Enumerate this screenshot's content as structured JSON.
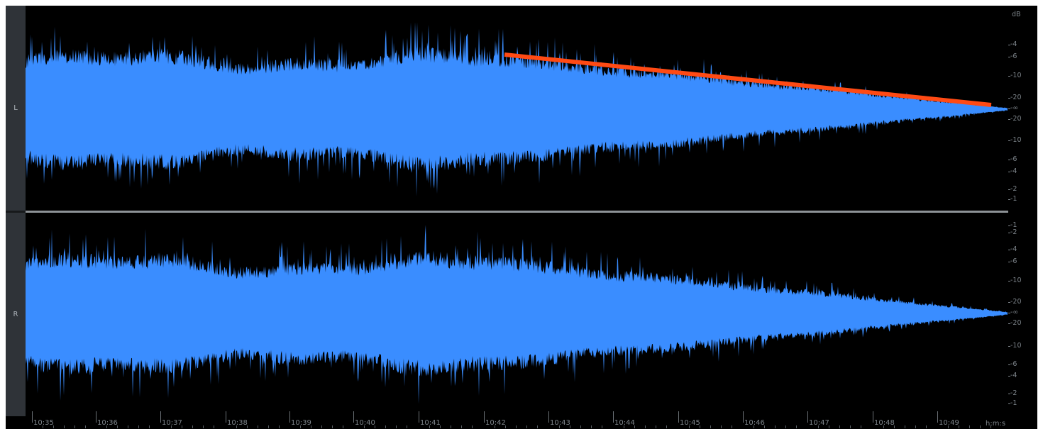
{
  "channels": [
    {
      "label": "L"
    },
    {
      "label": "R"
    }
  ],
  "db_scale": {
    "unit": "dB",
    "left_labels": [
      "-4",
      "-6",
      "-10",
      "-20",
      "-∞",
      "-20",
      "-10",
      "-6",
      "-4",
      "-2",
      "-1"
    ],
    "right_labels": [
      "-1",
      "-2",
      "-4",
      "-6",
      "-10",
      "-20",
      "-∞",
      "-20",
      "-10",
      "-6",
      "-4",
      "-2",
      "-1"
    ]
  },
  "timeline": {
    "labels": [
      "10:35",
      "10:36",
      "10:37",
      "10:38",
      "10:39",
      "10:40",
      "10:41",
      "10:42",
      "10:43",
      "10:44",
      "10:45",
      "10:46",
      "10:47",
      "10:48",
      "10:49"
    ],
    "units_label": "h:m:s"
  },
  "annotation": {
    "type": "fade-out-line",
    "color": "#ff4a14"
  },
  "colors": {
    "waveform": "#3a8dff",
    "background": "#000000",
    "annotation": "#ff4a14"
  }
}
